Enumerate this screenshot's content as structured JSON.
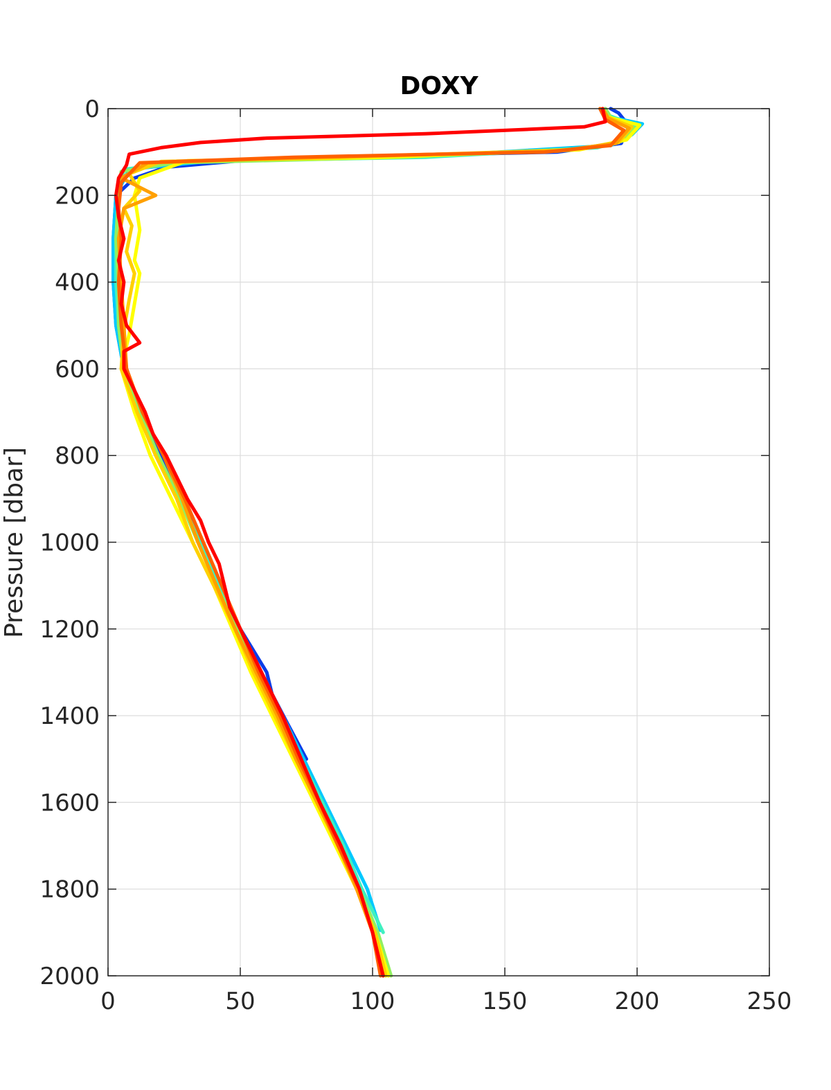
{
  "chart_data": {
    "type": "line",
    "title": "DOXY",
    "xlabel": "",
    "ylabel": "Pressure [dbar]",
    "xlim": [
      0,
      250
    ],
    "ylim": [
      0,
      2000
    ],
    "y_reversed": true,
    "grid": true,
    "legend": "none",
    "x_ticks": [
      "0",
      "50",
      "100",
      "150",
      "200",
      "250"
    ],
    "y_ticks": [
      "0",
      "200",
      "400",
      "600",
      "800",
      "1000",
      "1200",
      "1400",
      "1600",
      "1800",
      "2000"
    ],
    "series": [
      {
        "color": "#0a3ce8",
        "points": [
          [
            190,
            0
          ],
          [
            193,
            10
          ],
          [
            197,
            40
          ],
          [
            194,
            80
          ],
          [
            170,
            100
          ],
          [
            60,
            115
          ],
          [
            22,
            135
          ],
          [
            10,
            160
          ],
          [
            3,
            200
          ],
          [
            2,
            300
          ],
          [
            2,
            400
          ],
          [
            3,
            500
          ],
          [
            6,
            600
          ],
          [
            12,
            700
          ],
          [
            20,
            800
          ],
          [
            28,
            900
          ],
          [
            35,
            1000
          ],
          [
            42,
            1100
          ],
          [
            50,
            1200
          ],
          [
            60,
            1300
          ],
          [
            62,
            1350
          ],
          [
            68,
            1420
          ],
          [
            75,
            1500
          ]
        ]
      },
      {
        "color": "#00c8ff",
        "points": [
          [
            188,
            0
          ],
          [
            190,
            20
          ],
          [
            202,
            35
          ],
          [
            198,
            60
          ],
          [
            190,
            85
          ],
          [
            120,
            110
          ],
          [
            40,
            120
          ],
          [
            8,
            140
          ],
          [
            3,
            200
          ],
          [
            2,
            300
          ],
          [
            2,
            400
          ],
          [
            3,
            500
          ],
          [
            6,
            600
          ],
          [
            12,
            700
          ],
          [
            19,
            800
          ],
          [
            27,
            900
          ],
          [
            35,
            1000
          ],
          [
            42,
            1100
          ],
          [
            50,
            1200
          ],
          [
            58,
            1300
          ],
          [
            66,
            1400
          ],
          [
            74,
            1500
          ],
          [
            82,
            1600
          ],
          [
            90,
            1700
          ],
          [
            98,
            1800
          ],
          [
            103,
            1895
          ]
        ]
      },
      {
        "color": "#40f0c0",
        "points": [
          [
            188,
            0
          ],
          [
            189,
            15
          ],
          [
            200,
            40
          ],
          [
            196,
            70
          ],
          [
            185,
            90
          ],
          [
            120,
            112
          ],
          [
            30,
            122
          ],
          [
            6,
            140
          ],
          [
            4,
            200
          ],
          [
            3,
            300
          ],
          [
            3,
            400
          ],
          [
            4,
            500
          ],
          [
            6,
            600
          ],
          [
            12,
            700
          ],
          [
            19,
            800
          ],
          [
            27,
            900
          ],
          [
            35,
            1000
          ],
          [
            42,
            1100
          ],
          [
            50,
            1200
          ],
          [
            57,
            1300
          ],
          [
            65,
            1400
          ],
          [
            73,
            1500
          ],
          [
            81,
            1600
          ],
          [
            89,
            1700
          ],
          [
            96,
            1800
          ],
          [
            104,
            1900
          ]
        ]
      },
      {
        "color": "#90f060",
        "points": [
          [
            188,
            0
          ],
          [
            190,
            20
          ],
          [
            199,
            45
          ],
          [
            194,
            75
          ],
          [
            180,
            92
          ],
          [
            110,
            112
          ],
          [
            25,
            125
          ],
          [
            5,
            145
          ],
          [
            4,
            200
          ],
          [
            3,
            300
          ],
          [
            4,
            400
          ],
          [
            4,
            500
          ],
          [
            6,
            600
          ],
          [
            12,
            700
          ],
          [
            19,
            800
          ],
          [
            27,
            900
          ],
          [
            34,
            1000
          ],
          [
            41,
            1100
          ],
          [
            49,
            1200
          ],
          [
            56,
            1300
          ],
          [
            64,
            1400
          ],
          [
            72,
            1500
          ],
          [
            80,
            1600
          ],
          [
            88,
            1700
          ],
          [
            95,
            1800
          ],
          [
            102,
            1900
          ],
          [
            107,
            2000
          ]
        ]
      },
      {
        "color": "#ffff00",
        "points": [
          [
            186,
            0
          ],
          [
            188,
            18
          ],
          [
            201,
            38
          ],
          [
            196,
            72
          ],
          [
            178,
            95
          ],
          [
            100,
            113
          ],
          [
            30,
            120
          ],
          [
            12,
            160
          ],
          [
            10,
            200
          ],
          [
            12,
            280
          ],
          [
            10,
            350
          ],
          [
            12,
            380
          ],
          [
            10,
            450
          ],
          [
            8,
            520
          ],
          [
            5,
            600
          ],
          [
            10,
            700
          ],
          [
            16,
            800
          ],
          [
            24,
            900
          ],
          [
            32,
            1000
          ],
          [
            40,
            1100
          ],
          [
            47,
            1200
          ],
          [
            54,
            1300
          ],
          [
            62,
            1400
          ],
          [
            70,
            1500
          ],
          [
            78,
            1600
          ],
          [
            86,
            1700
          ],
          [
            94,
            1800
          ],
          [
            101,
            1900
          ],
          [
            106,
            2000
          ]
        ]
      },
      {
        "color": "#ffd000",
        "points": [
          [
            187,
            0
          ],
          [
            189,
            20
          ],
          [
            198,
            42
          ],
          [
            193,
            78
          ],
          [
            175,
            95
          ],
          [
            90,
            112
          ],
          [
            20,
            122
          ],
          [
            8,
            150
          ],
          [
            12,
            190
          ],
          [
            6,
            230
          ],
          [
            9,
            270
          ],
          [
            7,
            330
          ],
          [
            10,
            380
          ],
          [
            8,
            440
          ],
          [
            6,
            510
          ],
          [
            5,
            600
          ],
          [
            11,
            700
          ],
          [
            18,
            800
          ],
          [
            26,
            900
          ],
          [
            32,
            1000
          ],
          [
            40,
            1100
          ],
          [
            48,
            1200
          ],
          [
            55,
            1300
          ],
          [
            63,
            1400
          ],
          [
            71,
            1500
          ],
          [
            79,
            1600
          ],
          [
            87,
            1700
          ],
          [
            94,
            1800
          ],
          [
            101,
            1900
          ],
          [
            105,
            2000
          ]
        ]
      },
      {
        "color": "#ffa000",
        "points": [
          [
            187,
            0
          ],
          [
            189,
            22
          ],
          [
            197,
            45
          ],
          [
            192,
            80
          ],
          [
            170,
            98
          ],
          [
            80,
            112
          ],
          [
            15,
            125
          ],
          [
            5,
            160
          ],
          [
            18,
            200
          ],
          [
            6,
            230
          ],
          [
            4,
            300
          ],
          [
            5,
            400
          ],
          [
            6,
            500
          ],
          [
            7,
            600
          ],
          [
            13,
            700
          ],
          [
            21,
            800
          ],
          [
            28,
            900
          ],
          [
            34,
            1000
          ],
          [
            41,
            1100
          ],
          [
            48,
            1200
          ],
          [
            56,
            1300
          ],
          [
            64,
            1400
          ],
          [
            71,
            1500
          ],
          [
            79,
            1600
          ],
          [
            87,
            1700
          ],
          [
            94,
            1800
          ],
          [
            100,
            1900
          ],
          [
            104,
            2000
          ]
        ]
      },
      {
        "color": "#ff6000",
        "points": [
          [
            186,
            0
          ],
          [
            188,
            25
          ],
          [
            195,
            50
          ],
          [
            190,
            85
          ],
          [
            165,
            100
          ],
          [
            70,
            112
          ],
          [
            12,
            125
          ],
          [
            5,
            170
          ],
          [
            4,
            230
          ],
          [
            5,
            300
          ],
          [
            4,
            400
          ],
          [
            5,
            500
          ],
          [
            7,
            600
          ],
          [
            13,
            700
          ],
          [
            21,
            800
          ],
          [
            29,
            900
          ],
          [
            36,
            1000
          ],
          [
            43,
            1100
          ],
          [
            50,
            1200
          ],
          [
            57,
            1300
          ],
          [
            65,
            1400
          ],
          [
            72,
            1500
          ],
          [
            80,
            1600
          ],
          [
            87,
            1700
          ],
          [
            95,
            1800
          ],
          [
            100,
            1900
          ],
          [
            103,
            2000
          ]
        ]
      },
      {
        "color": "#ff0000",
        "points": [
          [
            187,
            0
          ],
          [
            188,
            30
          ],
          [
            180,
            42
          ],
          [
            120,
            58
          ],
          [
            60,
            68
          ],
          [
            35,
            78
          ],
          [
            20,
            90
          ],
          [
            8,
            105
          ],
          [
            7,
            130
          ],
          [
            4,
            160
          ],
          [
            3,
            200
          ],
          [
            4,
            250
          ],
          [
            6,
            300
          ],
          [
            4,
            350
          ],
          [
            6,
            400
          ],
          [
            5,
            450
          ],
          [
            7,
            500
          ],
          [
            12,
            540
          ],
          [
            6,
            560
          ],
          [
            6,
            600
          ],
          [
            10,
            650
          ],
          [
            14,
            700
          ],
          [
            17,
            750
          ],
          [
            22,
            800
          ],
          [
            26,
            850
          ],
          [
            30,
            900
          ],
          [
            35,
            950
          ],
          [
            38,
            1000
          ],
          [
            42,
            1050
          ],
          [
            46,
            1150
          ],
          [
            50,
            1200
          ],
          [
            58,
            1300
          ],
          [
            66,
            1400
          ],
          [
            73,
            1500
          ],
          [
            80,
            1600
          ],
          [
            88,
            1700
          ],
          [
            95,
            1800
          ],
          [
            100,
            1900
          ],
          [
            104,
            2000
          ]
        ]
      }
    ]
  }
}
